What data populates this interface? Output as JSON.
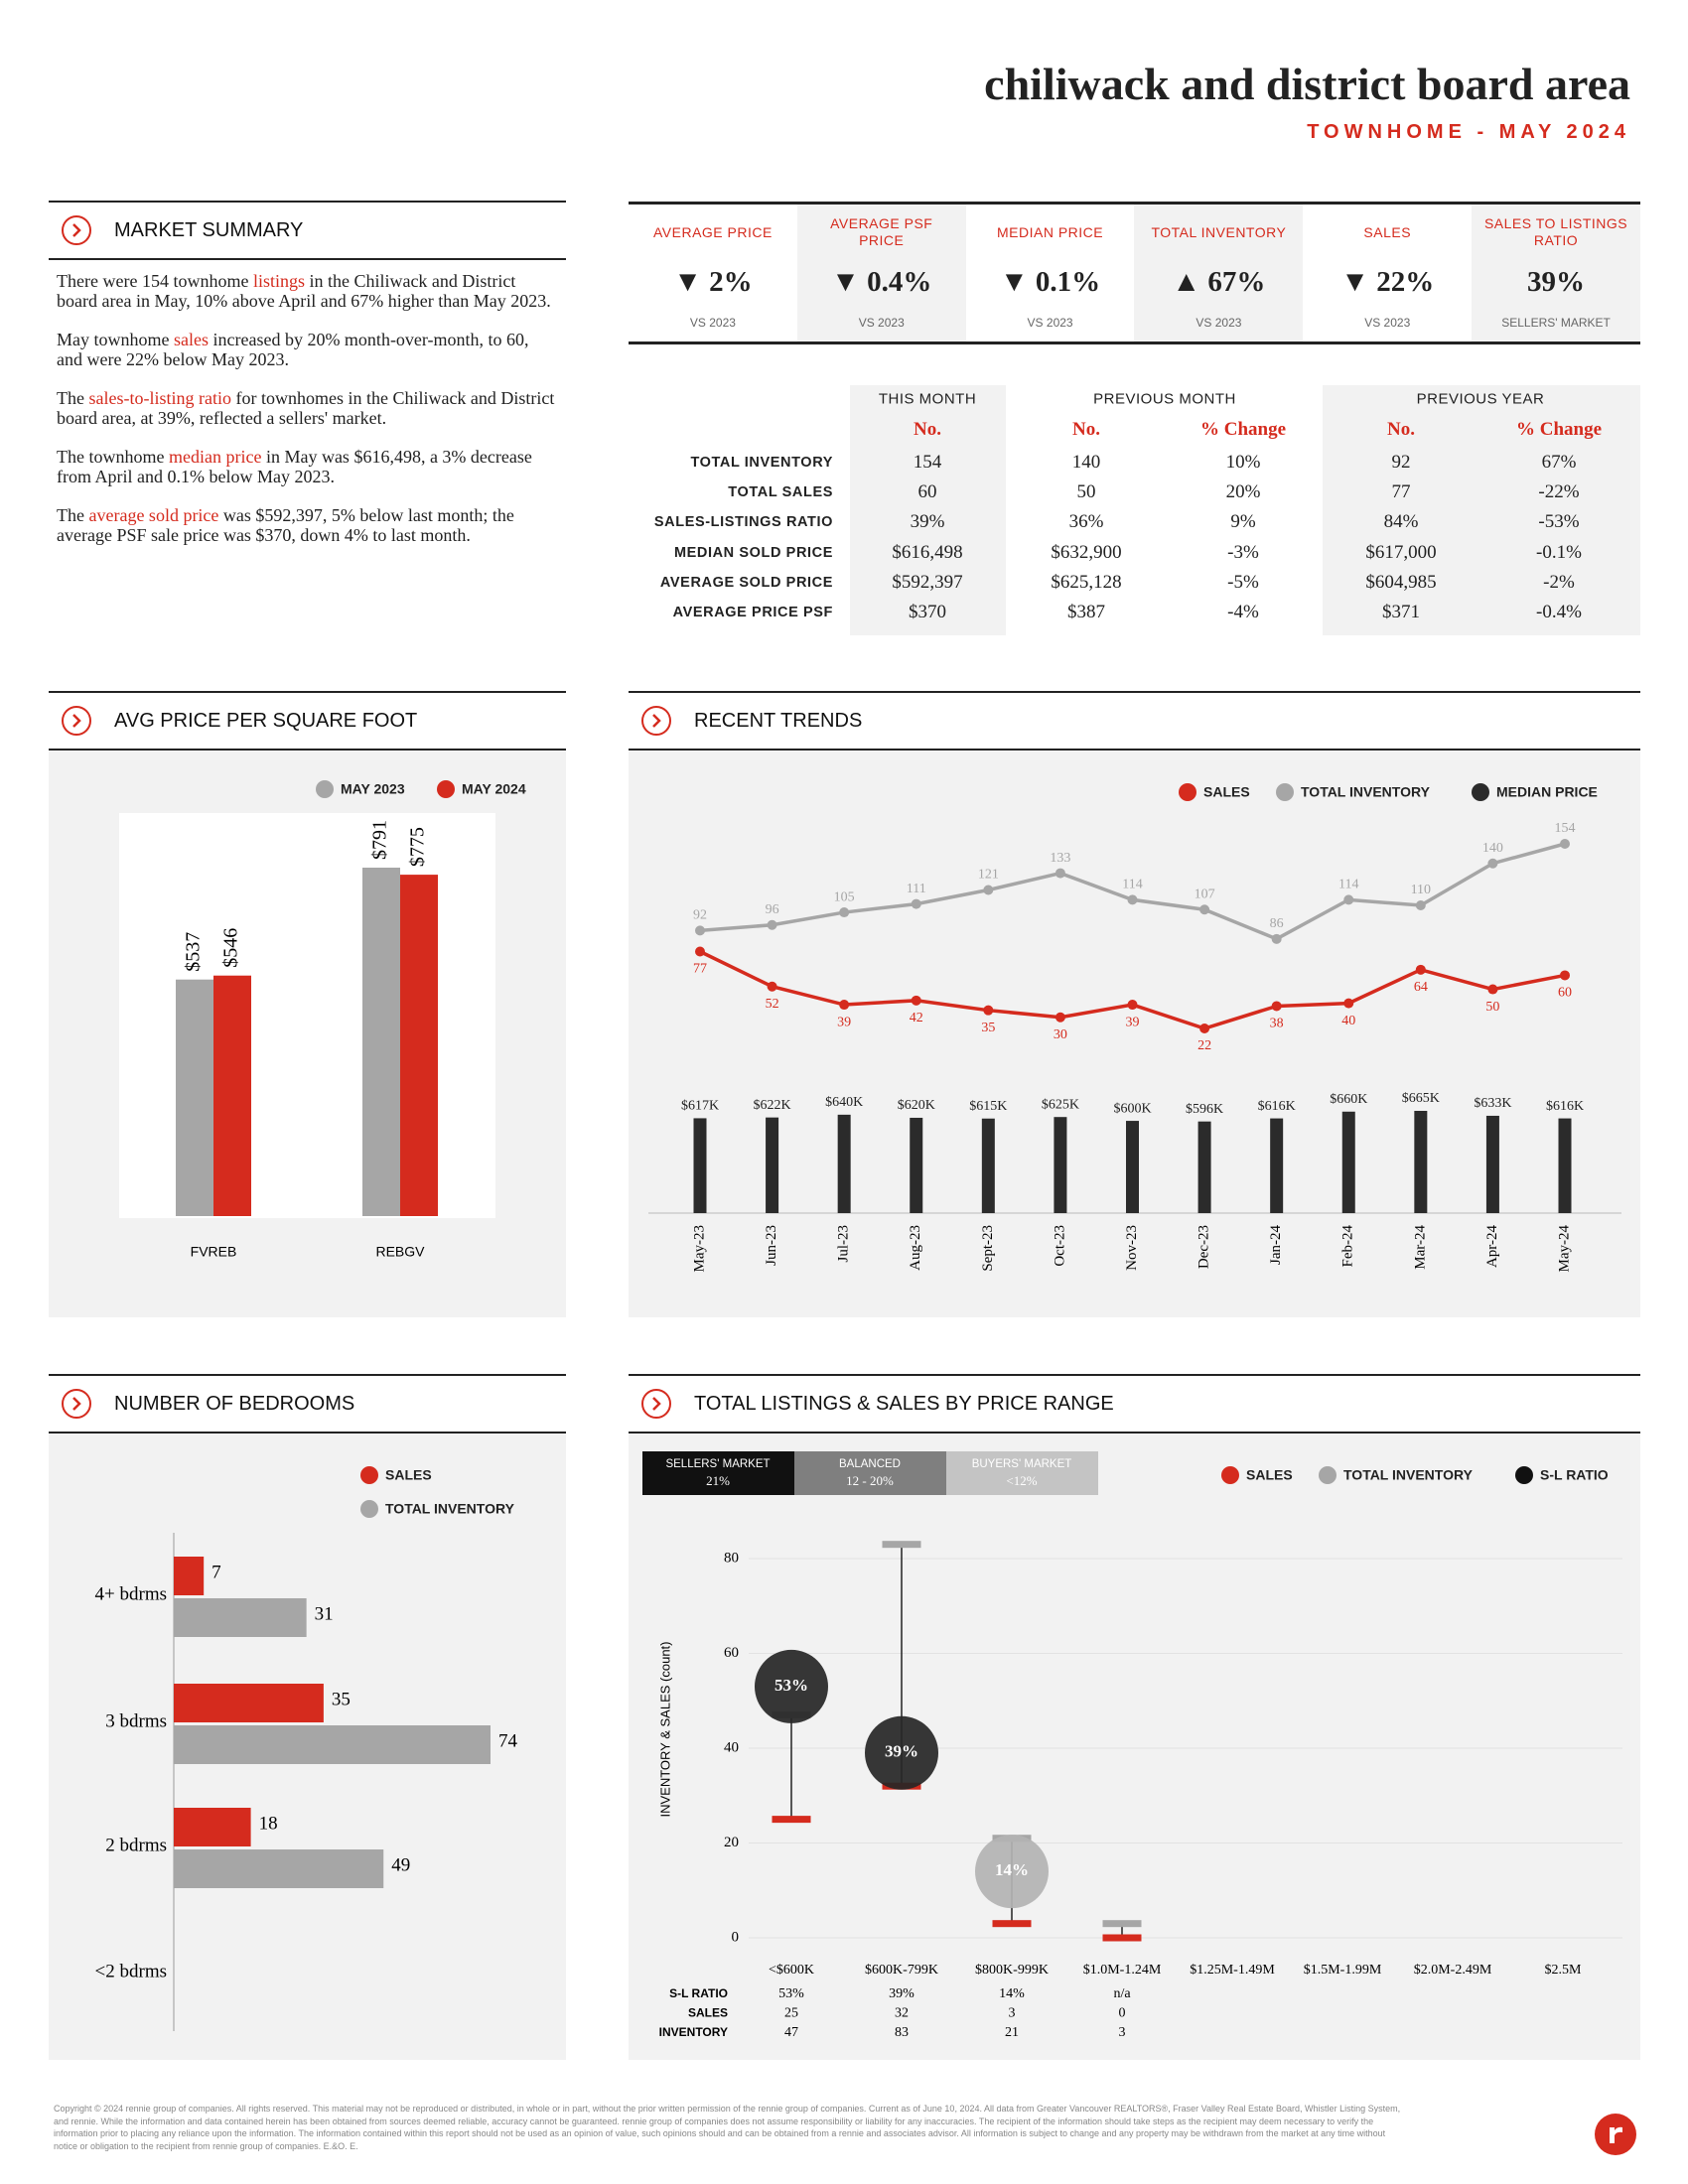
{
  "header": {
    "title": "chiliwack and district board area",
    "subtitle": "TOWNHOME - MAY 2024"
  },
  "market_summary": {
    "title": "MARKET SUMMARY",
    "paragraphs": [
      {
        "before": "There were 154 townhome ",
        "link": "listings",
        "after": " in the Chiliwack and District board area in May, 10% above April and 67% higher than May 2023."
      },
      {
        "before": "May townhome ",
        "link": "sales",
        "after": " increased by 20% month-over-month, to 60, and were 22% below May 2023."
      },
      {
        "before": "The ",
        "link": "sales-to-listing ratio",
        "after": " for townhomes in the Chiliwack and District board area, at 39%, reflected a sellers' market."
      },
      {
        "before": "The townhome ",
        "link": "median price",
        "after": " in May was $616,498, a 3% decrease from April and 0.1% below May 2023."
      },
      {
        "before": "The ",
        "link": "average sold price",
        "after": " was $592,397, 5% below last month; the average PSF sale price was $370, down 4% to last month."
      }
    ]
  },
  "kpis": [
    {
      "label": "AVERAGE PRICE",
      "value": "▼ 2%",
      "note": "VS 2023"
    },
    {
      "label": "AVERAGE PSF PRICE",
      "value": "▼ 0.4%",
      "note": "VS 2023"
    },
    {
      "label": "MEDIAN PRICE",
      "value": "▼ 0.1%",
      "note": "VS 2023"
    },
    {
      "label": "TOTAL INVENTORY",
      "value": "▲ 67%",
      "note": "VS 2023"
    },
    {
      "label": "SALES",
      "value": "▼ 22%",
      "note": "VS 2023"
    },
    {
      "label": "SALES TO LISTINGS RATIO",
      "value": "39%",
      "note": "SELLERS' MARKET"
    }
  ],
  "table": {
    "groups": [
      "THIS MONTH",
      "PREVIOUS MONTH",
      "PREVIOUS YEAR"
    ],
    "columns": [
      "No.",
      "No.",
      "% Change",
      "No.",
      "% Change"
    ],
    "rows": [
      [
        "TOTAL INVENTORY",
        "154",
        "140",
        "10%",
        "92",
        "67%"
      ],
      [
        "TOTAL SALES",
        "60",
        "50",
        "20%",
        "77",
        "-22%"
      ],
      [
        "SALES-LISTINGS RATIO",
        "39%",
        "36%",
        "9%",
        "84%",
        "-53%"
      ],
      [
        "MEDIAN SOLD PRICE",
        "$616,498",
        "$632,900",
        "-3%",
        "$617,000",
        "-0.1%"
      ],
      [
        "AVERAGE SOLD PRICE",
        "$592,397",
        "$625,128",
        "-5%",
        "$604,985",
        "-2%"
      ],
      [
        "AVERAGE PRICE PSF",
        "$370",
        "$387",
        "-4%",
        "$371",
        "-0.4%"
      ]
    ]
  },
  "chart_data": [
    {
      "type": "bar",
      "title": "AVG PRICE PER SQUARE FOOT",
      "categories": [
        "FVREB",
        "REBGV"
      ],
      "series": [
        {
          "name": "MAY 2023",
          "color": "#a6a6a6",
          "values": [
            537,
            791
          ],
          "value_labels": [
            "$537",
            "$791"
          ]
        },
        {
          "name": "MAY 2024",
          "color": "#d52b1e",
          "values": [
            546,
            775
          ],
          "value_labels": [
            "$546",
            "$775"
          ]
        }
      ]
    },
    {
      "type": "line",
      "title": "RECENT TRENDS",
      "categories": [
        "May-23",
        "Jun-23",
        "Jul-23",
        "Aug-23",
        "Sept-23",
        "Oct-23",
        "Nov-23",
        "Dec-23",
        "Jan-24",
        "Feb-24",
        "Mar-24",
        "Apr-24",
        "May-24"
      ],
      "series": [
        {
          "name": "SALES",
          "color": "#d52b1e",
          "type": "line",
          "values": [
            77,
            52,
            39,
            42,
            35,
            30,
            39,
            22,
            38,
            40,
            64,
            50,
            60
          ]
        },
        {
          "name": "TOTAL INVENTORY",
          "color": "#a6a6a6",
          "type": "line",
          "values": [
            92,
            96,
            105,
            111,
            121,
            133,
            114,
            107,
            86,
            114,
            110,
            140,
            154
          ]
        },
        {
          "name": "MEDIAN PRICE",
          "color": "#2b2b2b",
          "type": "bar",
          "values": [
            617000,
            622000,
            640000,
            620000,
            615000,
            625000,
            600000,
            596000,
            616000,
            660000,
            665000,
            633000,
            616000
          ],
          "value_labels": [
            "$617K",
            "$622K",
            "$640K",
            "$620K",
            "$615K",
            "$625K",
            "$600K",
            "$596K",
            "$616K",
            "$660K",
            "$665K",
            "$633K",
            "$616K"
          ]
        }
      ]
    },
    {
      "type": "hbar",
      "title": "NUMBER OF BEDROOMS",
      "categories": [
        "4+ bdrms",
        "3 bdrms",
        "2 bdrms",
        "<2 bdrms"
      ],
      "series": [
        {
          "name": "SALES",
          "color": "#d52b1e",
          "values": [
            7,
            35,
            18,
            null
          ]
        },
        {
          "name": "TOTAL INVENTORY",
          "color": "#a6a6a6",
          "values": [
            31,
            74,
            49,
            null
          ]
        }
      ]
    },
    {
      "type": "range",
      "title": "TOTAL LISTINGS & SALES BY PRICE RANGE",
      "y_label": "INVENTORY & SALES (count)",
      "ylim": [
        0,
        80
      ],
      "yticks": [
        0,
        20,
        40,
        60,
        80
      ],
      "grid": true,
      "bands": [
        {
          "name": "SELLERS' MARKET",
          "range": "21%",
          "color": "#111111"
        },
        {
          "name": "BALANCED",
          "range": "12 - 20%",
          "color": "#7f7f7f"
        },
        {
          "name": "BUYERS' MARKET",
          "range": "<12%",
          "color": "#c4c4c4"
        }
      ],
      "categories": [
        "<$600K",
        "$600K-799K",
        "$800K-999K",
        "$1.0M-1.24M",
        "$1.25M-1.49M",
        "$1.5M-1.99M",
        "$2.0M-2.49M",
        "$2.5M"
      ],
      "series": [
        {
          "name": "SALES",
          "color": "#d52b1e",
          "values": [
            25,
            32,
            3,
            0,
            null,
            null,
            null,
            null
          ]
        },
        {
          "name": "TOTAL INVENTORY",
          "color": "#a6a6a6",
          "values": [
            47,
            83,
            21,
            3,
            null,
            null,
            null,
            null
          ]
        },
        {
          "name": "S-L RATIO",
          "color": "#111111",
          "values": [
            53,
            39,
            14,
            null,
            null,
            null,
            null,
            null
          ],
          "value_labels": [
            "53%",
            "39%",
            "14%",
            "n/a",
            null,
            null,
            null,
            null
          ],
          "colors": [
            "#262626",
            "#262626",
            "#b3b3b3",
            null,
            null,
            null,
            null,
            null
          ]
        }
      ],
      "table_rows": [
        "S-L RATIO",
        "SALES",
        "INVENTORY"
      ]
    }
  ],
  "footer": "Copyright © 2024 rennie group of companies. All rights reserved. This material may not be reproduced or distributed, in whole or in part, without the prior written permission of the rennie group of companies. Current as of June 10, 2024. All data from Greater Vancouver REALTORS®, Fraser Valley Real Estate Board, Whistler Listing System, and rennie. While the information and data contained herein has been obtained from sources deemed reliable, accuracy cannot be guaranteed. rennie group of companies does not assume responsibility or liability for any inaccuracies. The recipient of the information should take steps as the recipient may deem necessary to verify the information prior to placing any reliance upon the information. The information contained within this report should not be used as an opinion of value, such opinions should and can be obtained from a rennie and associates advisor. All information is subject to change and any property may be withdrawn from the market at any time without notice or obligation to the recipient from rennie group of companies. E.&O. E."
}
